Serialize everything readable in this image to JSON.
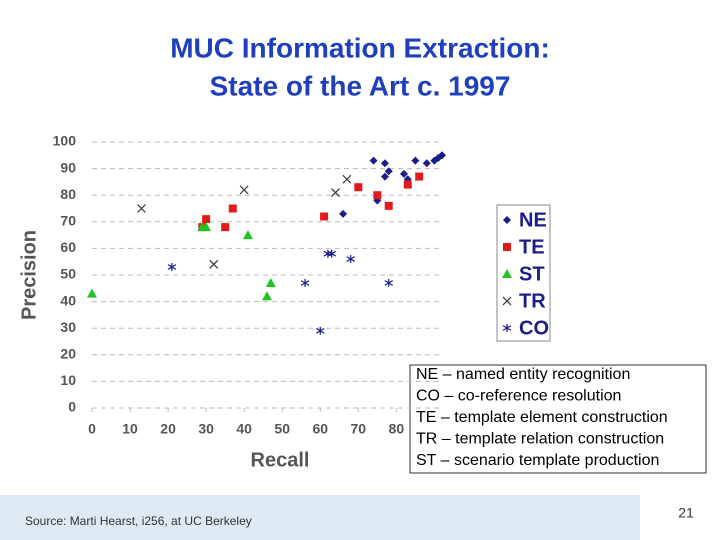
{
  "chart_data": {
    "type": "scatter",
    "title": "MUC Information Extraction:",
    "subtitle": "State of the Art c. 1997",
    "x_label": "Recall",
    "y_label": "Precision",
    "xlim": [
      0,
      92
    ],
    "ylim": [
      0,
      100
    ],
    "xticks": [
      0,
      10,
      20,
      30,
      40,
      50,
      60,
      70,
      80
    ],
    "yticks": [
      0,
      10,
      20,
      30,
      40,
      50,
      60,
      70,
      80,
      90,
      100
    ],
    "grid": true,
    "legend": "right",
    "series": [
      {
        "name": "NE",
        "color": "#1c1c8a",
        "marker": "diamond",
        "x": [
          74,
          77,
          77,
          78,
          75,
          75,
          82,
          85,
          88,
          90,
          91,
          92,
          66,
          83
        ],
        "values": [
          93,
          92,
          87,
          89,
          78,
          79,
          88,
          93,
          92,
          93,
          94,
          95,
          73,
          86
        ]
      },
      {
        "name": "TE",
        "color": "#e01b1b",
        "marker": "square",
        "x": [
          30,
          29,
          37,
          35,
          61,
          70,
          75,
          78,
          83,
          86
        ],
        "values": [
          71,
          68,
          75,
          68,
          72,
          83,
          80,
          76,
          84,
          87
        ]
      },
      {
        "name": "ST",
        "color": "#22c322",
        "marker": "triangle",
        "x": [
          0,
          29,
          30,
          41,
          47,
          46
        ],
        "values": [
          43,
          68,
          68,
          65,
          47,
          42
        ]
      },
      {
        "name": "TR",
        "color": "#333333",
        "marker": "x",
        "x": [
          13,
          40,
          32,
          64,
          67
        ],
        "values": [
          75,
          82,
          54,
          81,
          86
        ]
      },
      {
        "name": "CO",
        "color": "#1c1c8a",
        "marker": "asterisk",
        "x": [
          21,
          56,
          62,
          63,
          68,
          78,
          60
        ],
        "values": [
          53,
          47,
          58,
          58,
          56,
          47,
          29
        ]
      }
    ]
  },
  "notes": [
    "NE – named entity recognition",
    "CO – co-reference resolution",
    "TE – template element construction",
    "TR – template relation construction",
    "ST – scenario template production"
  ],
  "source": "Source: Marti Hearst, i256, at UC Berkeley",
  "page_number": 21
}
